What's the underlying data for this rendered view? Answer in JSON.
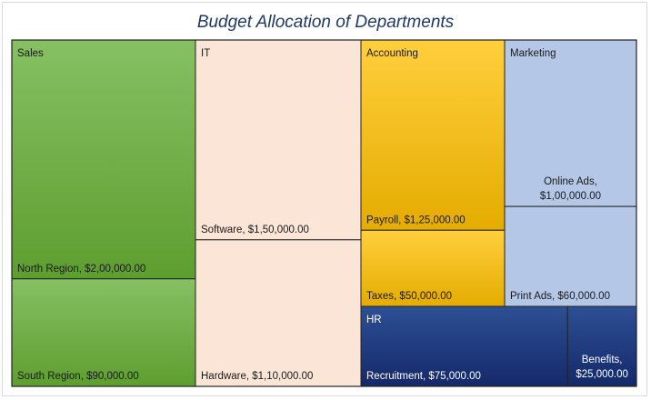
{
  "chart_data": {
    "type": "treemap",
    "title": "Budget Allocation of Departments",
    "groups": [
      {
        "name": "Sales",
        "color": "#6aaa3f",
        "items": [
          {
            "name": "North Region",
            "value": 200000,
            "label": "North Region,  $2,00,000.00"
          },
          {
            "name": "South Region",
            "value": 90000,
            "label": "South Region,  $90,000.00"
          }
        ]
      },
      {
        "name": "IT",
        "color": "#fbe5d6",
        "items": [
          {
            "name": "Software",
            "value": 150000,
            "label": "Software,  $1,50,000.00"
          },
          {
            "name": "Hardware",
            "value": 110000,
            "label": "Hardware,  $1,10,000.00"
          }
        ]
      },
      {
        "name": "Accounting",
        "color": "#ffc000",
        "items": [
          {
            "name": "Payroll",
            "value": 125000,
            "label": "Payroll,  $1,25,000.00"
          },
          {
            "name": "Taxes",
            "value": 50000,
            "label": "Taxes,  $50,000.00"
          }
        ]
      },
      {
        "name": "Marketing",
        "color": "#b4c7e7",
        "items": [
          {
            "name": "Online Ads",
            "value": 100000,
            "label_lines": [
              "Online Ads,",
              "$1,00,000.00"
            ]
          },
          {
            "name": "Print Ads",
            "value": 60000,
            "label": "Print Ads,  $60,000.00"
          }
        ]
      },
      {
        "name": "HR",
        "color": "#1f3a7a",
        "items": [
          {
            "name": "Recruitment",
            "value": 75000,
            "label": "Recruitment,  $75,000.00"
          },
          {
            "name": "Benefits",
            "value": 25000,
            "label_lines": [
              "Benefits,",
              "$25,000.00"
            ]
          }
        ]
      }
    ]
  }
}
